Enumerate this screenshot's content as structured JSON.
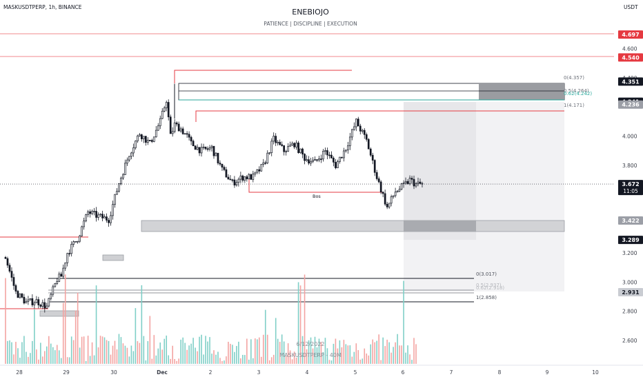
{
  "header": {
    "symbol_info": "MASKUSDTPERP, 1h, BINANCE",
    "title": "ENEBIOJO",
    "subtitle": "PATIENCE  |  DISCIPLINE  |  EXECUTION",
    "currency": "USDT"
  },
  "watermark": {
    "date": "6/12/2022",
    "symbol": "MASKUSDTPERP - 40M"
  },
  "y_axis": {
    "ticks": [
      "4.600",
      "4.400",
      "4.000",
      "3.800",
      "3.200",
      "3.000",
      "2.800",
      "2.600"
    ],
    "tick_values": [
      4.6,
      4.4,
      4.0,
      3.8,
      3.2,
      3.0,
      2.8,
      2.6
    ],
    "badges": [
      {
        "label": "4.697",
        "value": 4.697,
        "bg": "#e53940",
        "fg": "#ffffff"
      },
      {
        "label": "4.540",
        "value": 4.54,
        "bg": "#e53940",
        "fg": "#ffffff"
      },
      {
        "label": "4.351",
        "value": 4.351,
        "bg": "#131722",
        "fg": "#ffffff"
      },
      {
        "label": "4.241",
        "value": 4.241,
        "bg": "#131722",
        "fg": "#ffffff"
      },
      {
        "label": "4.236",
        "value": 4.236,
        "bg": "#9b9ea6",
        "fg": "#ffffff"
      },
      {
        "label": "3.672",
        "value": 3.672,
        "bg": "#131722",
        "fg": "#ffffff",
        "sub": "11:05"
      },
      {
        "label": "3.422",
        "value": 3.422,
        "bg": "#9b9ea6",
        "fg": "#ffffff"
      },
      {
        "label": "3.289",
        "value": 3.289,
        "bg": "#131722",
        "fg": "#ffffff"
      },
      {
        "label": "2.931",
        "value": 2.931,
        "bg": "#c9ccd2",
        "fg": "#131722"
      }
    ]
  },
  "x_axis": {
    "ticks": [
      "28",
      "29",
      "30",
      "Dec",
      "2",
      "3",
      "4",
      "5",
      "6",
      "7",
      "8",
      "9",
      "10"
    ]
  },
  "colors": {
    "up": "#26a69a",
    "down": "#ef5350",
    "candle": "#131722",
    "red_line": "#e53940",
    "green_fib": "#26a69a"
  },
  "annotations": {
    "bos_label": "Bos",
    "fib_top": [
      "0(4.357)",
      "0.5(4.264)",
      "0.62(4.242)",
      "1(4.171)"
    ],
    "fib_bottom": [
      "0(3.017)",
      "0.5(2.937)",
      "0.62(2.918)",
      "1(2.858)"
    ]
  },
  "chart_data": {
    "type": "candlestick",
    "title": "ENEBIOJO",
    "subtitle": "PATIENCE  |  DISCIPLINE  |  EXECUTION",
    "symbol": "MASKUSDTPERP",
    "interval": "1h",
    "exchange": "BINANCE",
    "x_labels": [
      "28",
      "29",
      "30",
      "Dec",
      "2",
      "3",
      "4",
      "5",
      "6",
      "7",
      "8",
      "9",
      "10"
    ],
    "ylabel": "USDT",
    "ylim": [
      2.5,
      4.8
    ],
    "last_price": 3.672,
    "levels": [
      4.697,
      4.54,
      4.351,
      4.241,
      4.236,
      3.422,
      3.289,
      2.931
    ],
    "price_path_x": [
      0,
      5,
      10,
      15,
      20,
      25,
      27,
      30,
      35,
      40,
      45,
      50,
      55,
      60,
      65,
      70,
      75,
      78,
      80,
      82,
      85,
      88,
      90,
      95,
      100,
      105,
      110,
      115,
      120,
      125,
      130,
      135,
      140,
      145,
      150,
      155,
      160,
      165,
      170,
      175,
      180,
      185,
      189,
      193,
      196,
      199,
      202
    ],
    "price_path_y": [
      3.17,
      2.93,
      2.86,
      2.87,
      2.83,
      3.02,
      3.04,
      3.2,
      3.3,
      3.48,
      3.45,
      3.43,
      3.68,
      3.88,
      4.02,
      3.95,
      4.1,
      4.25,
      4.0,
      4.08,
      4.05,
      4.0,
      3.95,
      3.9,
      3.92,
      3.77,
      3.68,
      3.72,
      3.72,
      3.8,
      3.98,
      3.9,
      3.95,
      3.85,
      3.82,
      3.9,
      3.8,
      3.92,
      4.1,
      3.97,
      3.72,
      3.51,
      3.62,
      3.66,
      3.7,
      3.67,
      3.672
    ]
  }
}
